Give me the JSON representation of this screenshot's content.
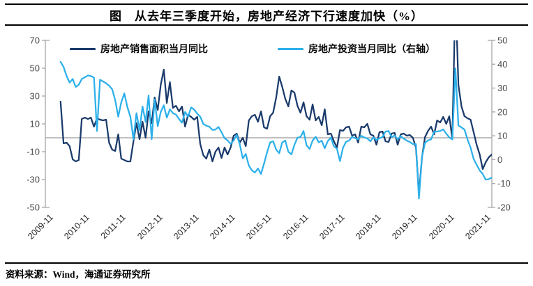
{
  "title": "图　从去年三季度开始，房地产经济下行速度加快（%）",
  "legend": [
    {
      "label": "房地产销售面积当月同比",
      "color": "#1a3a6b"
    },
    {
      "label": "房地产投资当月同比（右轴）",
      "color": "#2cb0ea"
    }
  ],
  "source": "资料来源：Wind，海通证券研究所",
  "chart_data": {
    "type": "line",
    "title": "从去年三季度开始，房地产经济下行速度加快（%）",
    "x_start_month": "2010-04",
    "x_months_per_point": 1,
    "x_tick_labels": [
      "2009-11",
      "2010-11",
      "2011-11",
      "2012-11",
      "2013-11",
      "2014-11",
      "2015-11",
      "2016-11",
      "2017-11",
      "2018-11",
      "2019-11",
      "2020-11",
      "2021-11"
    ],
    "left_axis": {
      "ticks": [
        70,
        50,
        30,
        10,
        -10,
        -30,
        -50
      ],
      "min": -50,
      "max": 70
    },
    "right_axis": {
      "ticks": [
        50,
        40,
        30,
        20,
        10,
        0,
        -10,
        -20
      ],
      "min": -20,
      "max": 50
    },
    "zero_line": true,
    "grid": false,
    "legend_position": "top-inside",
    "series": [
      {
        "name": "房地产销售面积当月同比",
        "axis": "left",
        "color": "#1a3a6b",
        "monthly_values": [
          26,
          -4,
          -3.5,
          -6,
          -15.5,
          -17,
          -16,
          13.5,
          14.5,
          13.5,
          14.5,
          8,
          14,
          13,
          12.5,
          13,
          -3.5,
          -8.5,
          -9.5,
          2.5,
          -15,
          -16,
          -17,
          -17,
          -2.5,
          10.5,
          -1,
          11.5,
          0,
          19,
          10.5,
          29,
          20,
          38,
          49,
          25,
          40,
          21.5,
          23,
          19,
          22.5,
          8,
          16.5,
          15,
          13,
          15,
          -4.5,
          -12.5,
          -15,
          -8.5,
          -17,
          -10,
          -7,
          -14.5,
          -7,
          -12,
          -7,
          1.5,
          3,
          -3.5,
          0,
          -6,
          12.5,
          15.5,
          16.5,
          11.5,
          19,
          7.5,
          6.5,
          15.5,
          18,
          29,
          44,
          36.5,
          28,
          22.5,
          34,
          32.5,
          23,
          18,
          25.5,
          15.5,
          13,
          24,
          12.5,
          15,
          9,
          20.5,
          2.5,
          3,
          -2.5,
          -7,
          5.5,
          5,
          7.5,
          8,
          1.5,
          2.5,
          -3.5,
          8,
          7.5,
          10,
          2.5,
          1.5,
          -5,
          4,
          4.5,
          -2.5,
          -3,
          3,
          3.5,
          -5,
          2.5,
          3,
          1.5,
          2,
          0,
          -7,
          -40,
          -14,
          0.5,
          5,
          8,
          2.5,
          12.5,
          11,
          15,
          10,
          15.5,
          -1,
          105,
          38,
          22.5,
          15.5,
          14,
          13,
          4,
          -5,
          -12,
          -22.5,
          -17.5,
          -14,
          -12
        ]
      },
      {
        "name": "房地产投资当月同比（右轴）",
        "axis": "right",
        "color": "#2cb0ea",
        "monthly_values": [
          41,
          38.9,
          35,
          32.3,
          33.8,
          30.5,
          31.4,
          33.8,
          34.5,
          35.3,
          35,
          34.4,
          12,
          33.5,
          32.8,
          32,
          31,
          29.5,
          25,
          18,
          24,
          27.8,
          22,
          18,
          8.5,
          19.5,
          12.4,
          22.3,
          15.8,
          26.9,
          8.6,
          25.2,
          14,
          20,
          22.8,
          17.6,
          21.1,
          19.5,
          18.9,
          17,
          15.5,
          20,
          18,
          21.9,
          21,
          19.3,
          18,
          15,
          14.2,
          13.8,
          12.5,
          12.6,
          13.7,
          11.5,
          9,
          8.1,
          6.6,
          8,
          10.4,
          6.5,
          0.5,
          2.4,
          -2.5,
          -4.5,
          -5.4,
          -3.7,
          -6,
          -1.6,
          3,
          7.2,
          7.7,
          4.2,
          2.7,
          7.2,
          8,
          3.3,
          2.2,
          6.2,
          9.2,
          9.5,
          12,
          6,
          4.5,
          8,
          9.6,
          7.3,
          7.9,
          4.8,
          7.8,
          9.2,
          5.6,
          4.6,
          -0.6,
          5,
          7.5,
          8,
          9.5,
          9,
          8.5,
          10,
          9.3,
          8.9,
          7.7,
          9.3,
          8.2,
          9,
          9.5,
          11.8,
          12,
          9.5,
          10.1,
          8.5,
          9.9,
          8.8,
          8,
          7.4,
          6.5,
          6.5,
          -16.3,
          1.2,
          7,
          8.1,
          8.5,
          11.7,
          11.8,
          12,
          12.7,
          10.9,
          9.3,
          8.5,
          38.3,
          14.3,
          13.5,
          12.6,
          8.4,
          5.1,
          0.3,
          -2.1,
          -4.5,
          -6,
          -8.4,
          -8.2,
          -7.5
        ]
      }
    ]
  }
}
